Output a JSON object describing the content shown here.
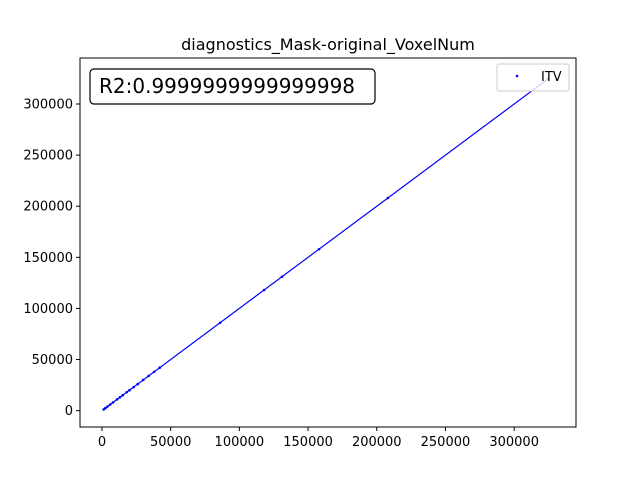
{
  "chart_data": {
    "type": "scatter",
    "title": "diagnostics_Mask-original_VoxelNum",
    "xlabel": "",
    "ylabel": "",
    "xlim": [
      -16000,
      345000
    ],
    "ylim": [
      -16000,
      345000
    ],
    "x_ticks": [
      0,
      50000,
      100000,
      150000,
      200000,
      250000,
      300000
    ],
    "y_ticks": [
      0,
      50000,
      100000,
      150000,
      200000,
      250000,
      300000
    ],
    "grid": false,
    "legend": {
      "position": "top-right",
      "entries": [
        "ITV"
      ]
    },
    "annotation": {
      "text": "R2:0.9999999999999998",
      "position": "top-left"
    },
    "series": [
      {
        "name": "ITV",
        "color": "#0000ff",
        "marker": "point",
        "x": [
          1200,
          2500,
          4000,
          6000,
          8000,
          11000,
          13000,
          15000,
          18000,
          20000,
          23000,
          26000,
          30000,
          34000,
          38000,
          42000,
          86000,
          118000,
          131000,
          158000,
          208000,
          325000
        ],
        "y": [
          1200,
          2500,
          4000,
          6000,
          8000,
          11000,
          13000,
          15000,
          18000,
          20000,
          23000,
          26000,
          30000,
          34000,
          38000,
          42000,
          86000,
          118000,
          131000,
          158000,
          208000,
          325000
        ]
      }
    ],
    "fit_line": {
      "color": "#0000ff",
      "x": [
        1200,
        325000
      ],
      "y": [
        1200,
        325000
      ]
    }
  }
}
